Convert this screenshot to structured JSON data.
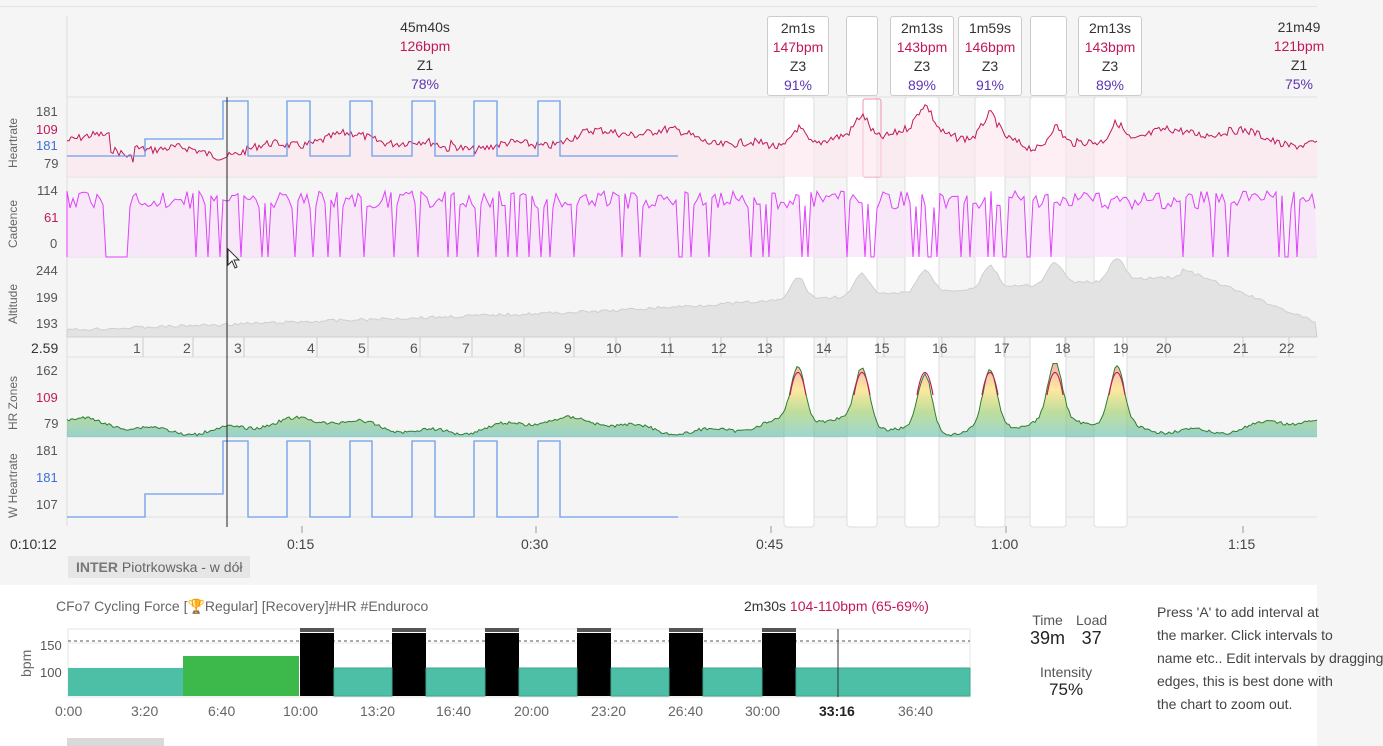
{
  "cursor_time": "0:10:12",
  "interval_cards": [
    {
      "dur": "45m40s",
      "bpm": "126bpm",
      "zone": "Z1",
      "pct": "78%",
      "open": true
    },
    {
      "dur": "2m1s",
      "bpm": "147bpm",
      "zone": "Z3",
      "pct": "91%"
    },
    {
      "dur": "",
      "bpm": "",
      "zone": "",
      "pct": ""
    },
    {
      "dur": "2m13s",
      "bpm": "143bpm",
      "zone": "Z3",
      "pct": "89%"
    },
    {
      "dur": "1m59s",
      "bpm": "146bpm",
      "zone": "Z3",
      "pct": "91%"
    },
    {
      "dur": "",
      "bpm": "",
      "zone": "",
      "pct": ""
    },
    {
      "dur": "2m13s",
      "bpm": "143bpm",
      "zone": "Z3",
      "pct": "89%"
    },
    {
      "dur": "21m49",
      "bpm": "121bpm",
      "zone": "Z1",
      "pct": "75%",
      "open": true
    }
  ],
  "panels": {
    "heartrate": {
      "title": "Heartrate",
      "ticks": [
        "181",
        "109",
        "181",
        "79"
      ]
    },
    "cadence": {
      "title": "Cadence",
      "ticks": [
        "114",
        "61",
        "0"
      ]
    },
    "altitude": {
      "title": "Altitude",
      "ticks": [
        "244",
        "199",
        "193"
      ]
    },
    "hrzones": {
      "title": "HR Zones",
      "ticks": [
        "162",
        "109",
        "79"
      ]
    },
    "wheartrate": {
      "title": "W Heartrate",
      "ticks": [
        "181",
        "181",
        "107"
      ]
    }
  },
  "laps_left_value": "2.59",
  "laps": [
    "1",
    "2",
    "3",
    "4",
    "5",
    "6",
    "7",
    "8",
    "9",
    "10",
    "11",
    "12",
    "13",
    "14",
    "15",
    "16",
    "17",
    "18",
    "19",
    "20",
    "21",
    "22"
  ],
  "x_ticks": [
    "0:15",
    "0:30",
    "0:45",
    "1:00",
    "1:15"
  ],
  "segment": {
    "tag": "INTER",
    "name": "Piotrkowska - w dół"
  },
  "workout": {
    "title": "CFo7 Cycling Force [🏆Regular] [Recovery]#HR #Enduroco",
    "selected_dur": "2m30s",
    "selected_hr": "104-110bpm (65-69%)",
    "ylabel": "bpm",
    "yticks": [
      "150",
      "100"
    ],
    "xticks": [
      "0:00",
      "3:20",
      "6:40",
      "10:00",
      "13:20",
      "16:40",
      "20:00",
      "23:20",
      "26:40",
      "30:00",
      "33:16",
      "36:40"
    ]
  },
  "stats": {
    "time_label": "Time",
    "time_value": "39m",
    "load_label": "Load",
    "load_value": "37",
    "intensity_label": "Intensity",
    "intensity_value": "75%"
  },
  "help_text": [
    "Press 'A' to add interval at",
    "the marker. Click intervals to",
    "name etc.. Edit intervals by dragging",
    "edges, this is best done with",
    "the chart to zoom out."
  ],
  "colors": {
    "hr": "#c2185b",
    "cadence": "#e040fb",
    "planned": "#6d9eeb",
    "zone_green": "#2e9a4a",
    "teal": "#4cbfa6",
    "purple": "#5e35b1"
  }
}
